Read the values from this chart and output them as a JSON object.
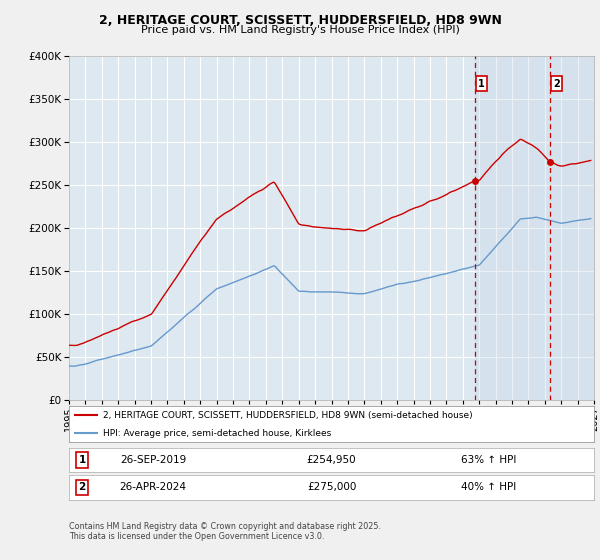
{
  "title_line1": "2, HERITAGE COURT, SCISSETT, HUDDERSFIELD, HD8 9WN",
  "title_line2": "Price paid vs. HM Land Registry's House Price Index (HPI)",
  "red_label": "2, HERITAGE COURT, SCISSETT, HUDDERSFIELD, HD8 9WN (semi-detached house)",
  "blue_label": "HPI: Average price, semi-detached house, Kirklees",
  "footer": "Contains HM Land Registry data © Crown copyright and database right 2025.\nThis data is licensed under the Open Government Licence v3.0.",
  "sale1_date": "26-SEP-2019",
  "sale1_price": 254950,
  "sale1_label": "£254,950",
  "sale1_hpi_pct": "63% ↑ HPI",
  "sale2_date": "26-APR-2024",
  "sale2_price": 275000,
  "sale2_label": "£275,000",
  "sale2_hpi_pct": "40% ↑ HPI",
  "ylim": [
    0,
    400000
  ],
  "xlim_start": 1995.0,
  "xlim_end": 2027.0,
  "red_color": "#cc0000",
  "blue_color": "#6699cc",
  "grid_color": "#ffffff",
  "plot_bg_color": "#dde8f0",
  "fig_bg_color": "#f0f0f0",
  "vline_color": "#cc0000",
  "shade_color": "#c8d8e8",
  "sale1_year": 2019.74,
  "sale2_year": 2024.32
}
